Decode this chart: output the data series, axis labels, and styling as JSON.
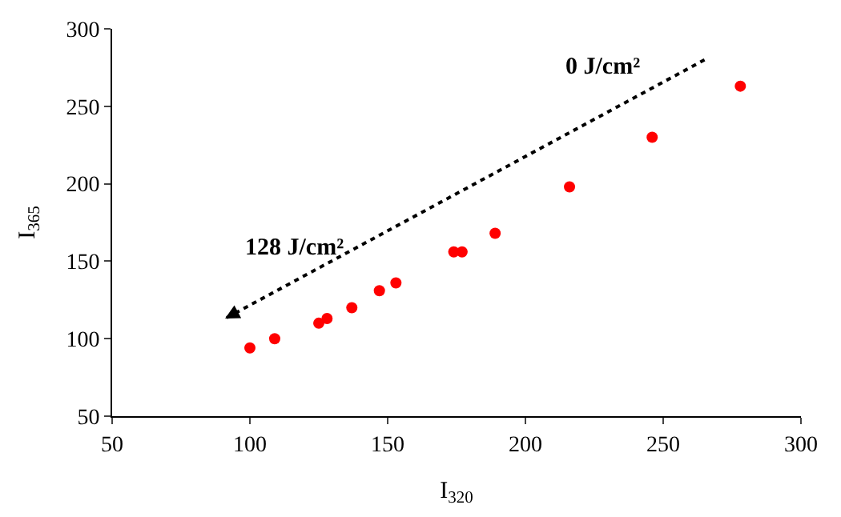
{
  "chart_data": {
    "type": "scatter",
    "xlabel": "I$_{320}$",
    "ylabel": "I$_{365}$",
    "x": [
      100,
      109,
      125,
      128,
      137,
      147,
      153,
      174,
      177,
      189,
      216,
      246,
      278
    ],
    "series": [
      {
        "color": "#ff0000",
        "values": [
          94,
          100,
          110,
          113,
          120,
          131,
          136,
          156,
          156,
          168,
          198,
          230,
          263
        ]
      }
    ],
    "xlim": [
      50,
      300
    ],
    "xticks": [
      50,
      100,
      150,
      200,
      250,
      300
    ],
    "ylim": [
      50,
      300
    ],
    "yticks": [
      50,
      100,
      150,
      200,
      250,
      300
    ],
    "legend": false,
    "marker": "circle",
    "annotations": [
      "0 J/cm²",
      "128 J/cm²"
    ]
  }
}
